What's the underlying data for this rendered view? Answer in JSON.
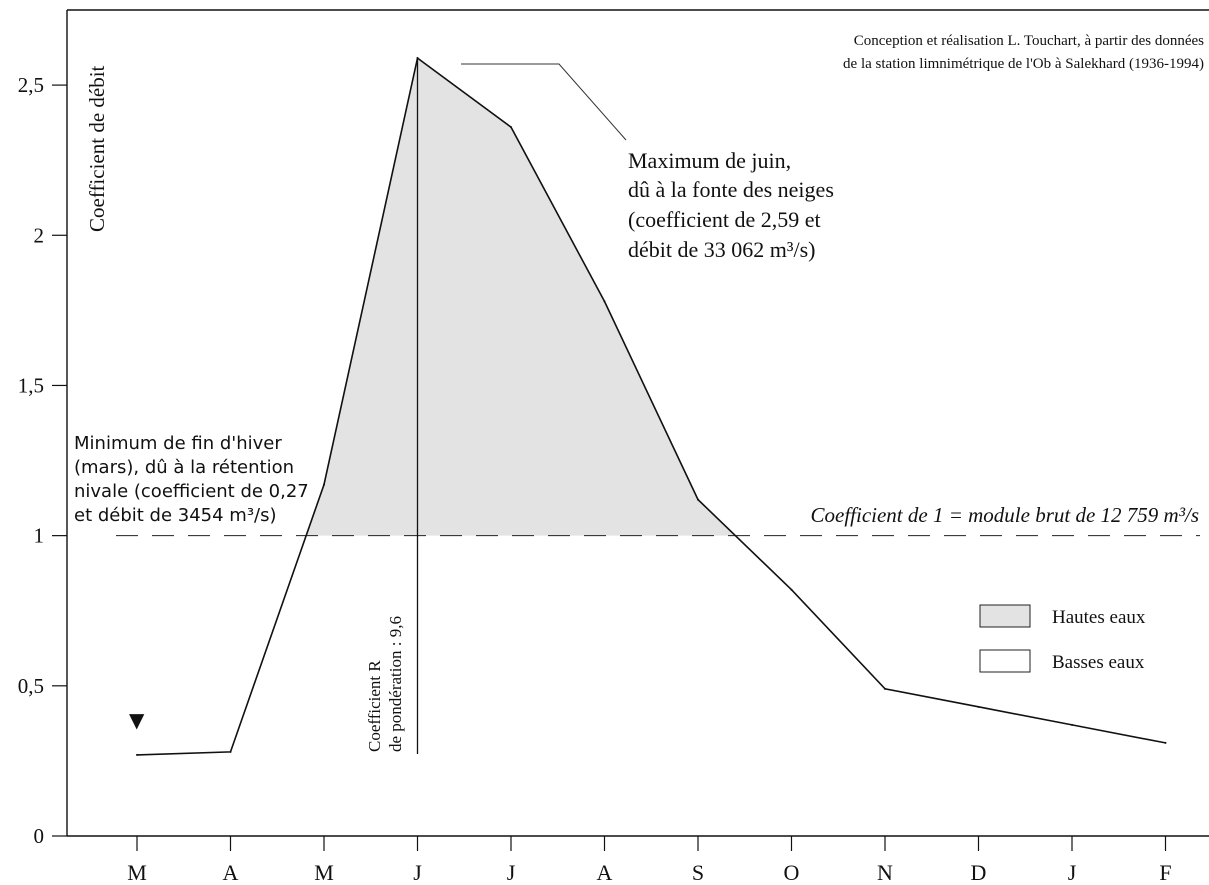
{
  "chart_data": {
    "type": "line",
    "categories": [
      "M",
      "A",
      "M",
      "J",
      "J",
      "A",
      "S",
      "O",
      "N",
      "D",
      "J",
      "F"
    ],
    "values": [
      0.27,
      0.28,
      1.17,
      2.59,
      2.36,
      1.78,
      1.12,
      0.82,
      0.49,
      0.43,
      0.37,
      0.31
    ],
    "ylabel": "Coefficient de débit",
    "ylim": [
      0,
      2.75
    ],
    "yticks": [
      0,
      0.5,
      1,
      1.5,
      2,
      2.5
    ],
    "ytick_labels": [
      "0",
      "0,5",
      "1",
      "1,5",
      "2",
      "2,5"
    ],
    "reference_line": 1,
    "reference_label": "Coefficient de 1 = module brut de 12 759 m³/s",
    "fill_above_reference": true,
    "fill_color": "#e3e3e3",
    "line_color": "#111111",
    "grid": false,
    "legend_position": "right",
    "legend": [
      {
        "label": "Hautes eaux",
        "color": "#e3e3e3"
      },
      {
        "label": "Basses eaux",
        "color": "#ffffff"
      }
    ],
    "credit": [
      "Conception et réalisation L. Touchart, à partir des données",
      "de la station limnimétrique de l'Ob à Salekhard  (1936-1994)"
    ],
    "annotations": {
      "maximum": [
        "Maximum de juin,",
        "dû à la fonte des neiges",
        "(coefficient de 2,59 et",
        "débit de 33 062 m³/s)"
      ],
      "minimum": [
        "Minimum de fin d'hiver",
        "(mars), dû à la rétention",
        "nivale (coefficient de 0,27",
        "et débit  de 3454 m³/s)"
      ],
      "coefficient_r": [
        "Coefficient R",
        "de pondération : 9,6"
      ],
      "minimum_marker": "▼"
    }
  }
}
